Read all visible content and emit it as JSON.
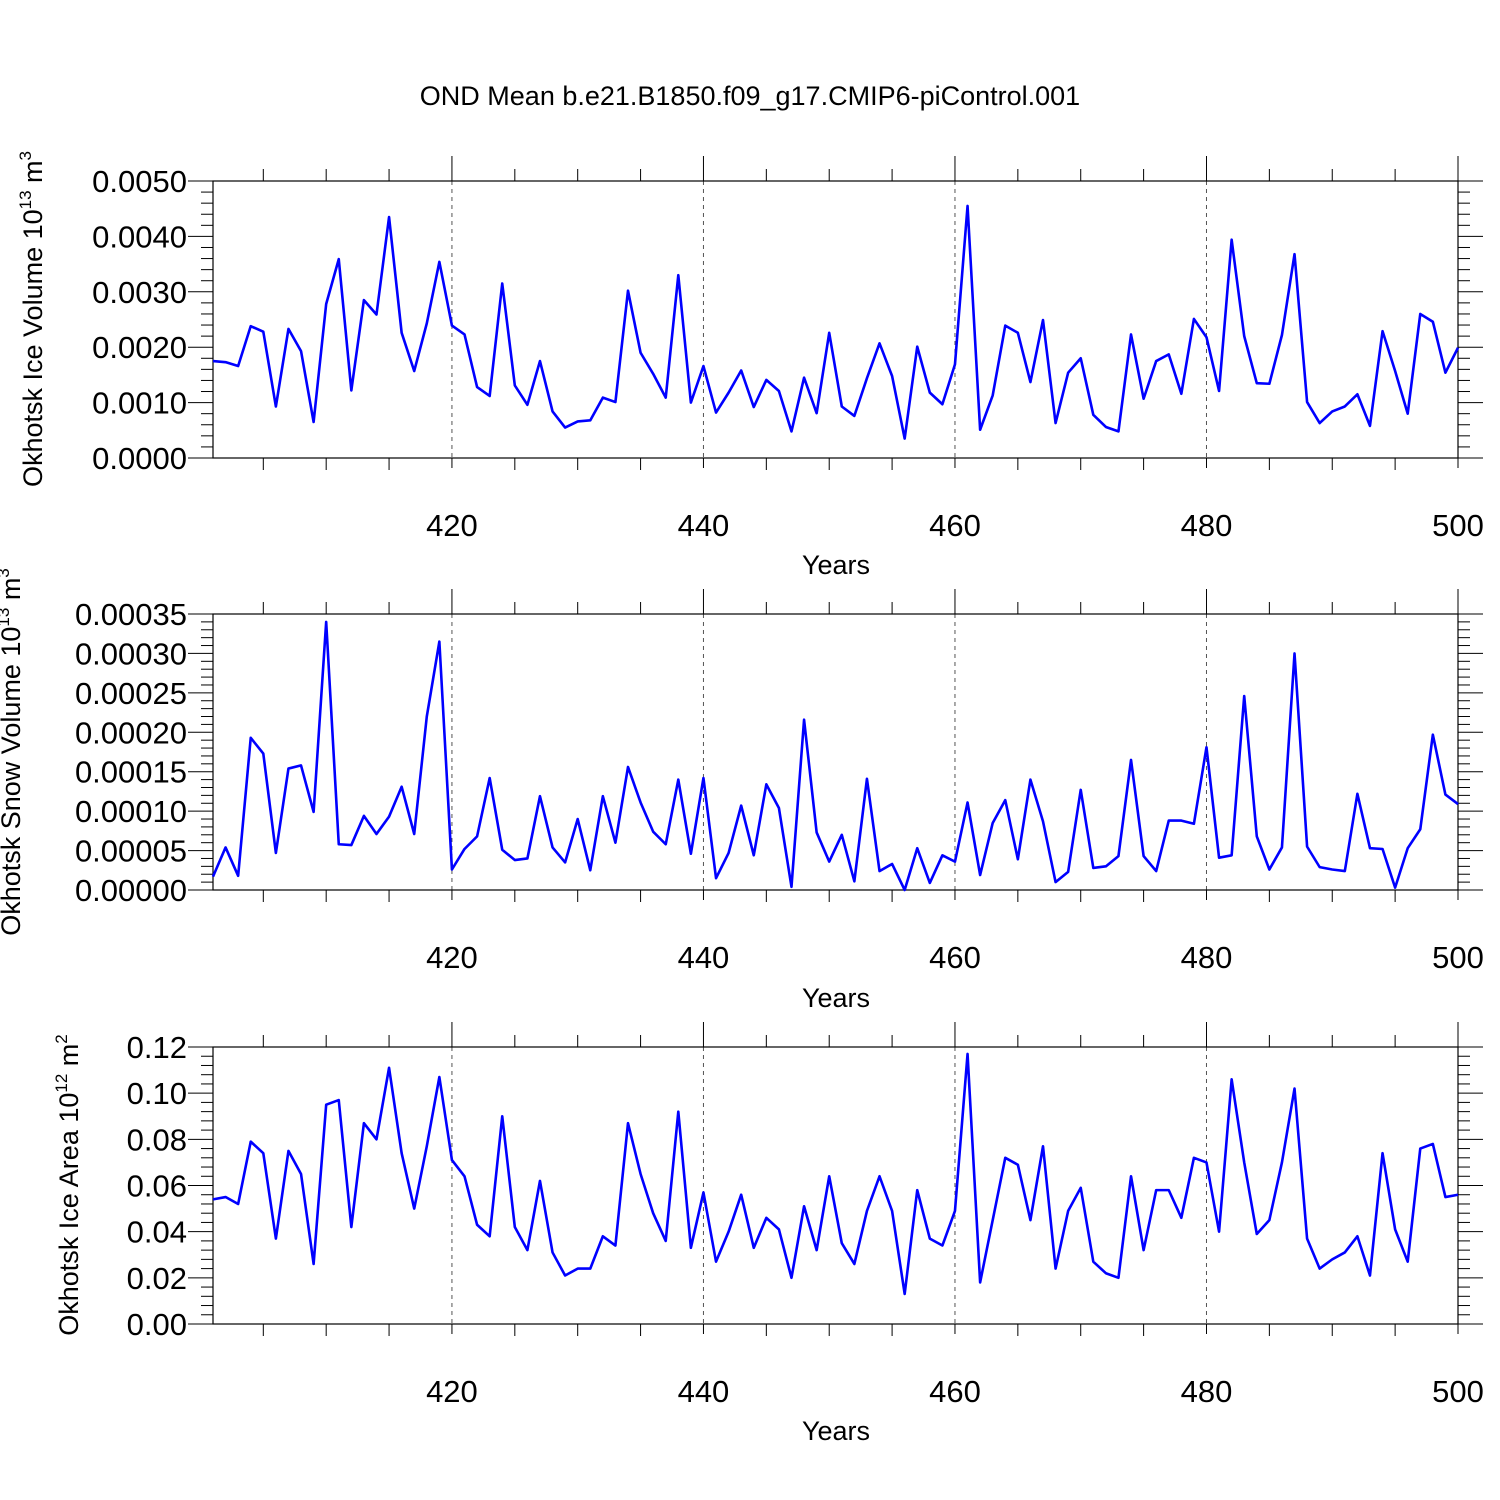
{
  "title": "OND Mean b.e21.B1850.f09_g17.CMIP6-piControl.001",
  "colors": {
    "line": "#0000ff",
    "axis": "#000000",
    "grid": "#555555"
  },
  "chart_data": [
    {
      "type": "line",
      "xlabel": "Years",
      "ylabel": {
        "main": "Okhotsk Ice Volume 10",
        "exp": "13",
        "unit": " m",
        "unit_exp": "3"
      },
      "xlim": [
        401,
        500
      ],
      "ylim": [
        0,
        0.005
      ],
      "xticks": [
        "420",
        "440",
        "460",
        "480",
        "500"
      ],
      "yticks": [
        "0.0000",
        "0.0010",
        "0.0020",
        "0.0030",
        "0.0040",
        "0.0050"
      ],
      "grid": "dashed vertical at major x ticks",
      "x_start": 401,
      "values": [
        0.00175,
        0.00173,
        0.00166,
        0.00238,
        0.00228,
        0.00093,
        0.00233,
        0.00193,
        0.00065,
        0.00278,
        0.00359,
        0.00122,
        0.00285,
        0.00259,
        0.00435,
        0.00226,
        0.00157,
        0.00243,
        0.00354,
        0.00239,
        0.00223,
        0.00128,
        0.00112,
        0.00315,
        0.00131,
        0.00096,
        0.00175,
        0.00084,
        0.00055,
        0.00066,
        0.00068,
        0.00109,
        0.00101,
        0.00302,
        0.0019,
        0.00152,
        0.00109,
        0.0033,
        0.001,
        0.00166,
        0.00082,
        0.00118,
        0.00158,
        0.00092,
        0.00141,
        0.00121,
        0.00048,
        0.00145,
        0.00081,
        0.00226,
        0.00093,
        0.00076,
        0.00144,
        0.00207,
        0.00148,
        0.00035,
        0.00201,
        0.00118,
        0.00097,
        0.00169,
        0.00455,
        0.00051,
        0.00113,
        0.00239,
        0.00226,
        0.00137,
        0.00249,
        0.00063,
        0.00154,
        0.0018,
        0.00078,
        0.00056,
        0.00048,
        0.00223,
        0.00107,
        0.00175,
        0.00187,
        0.00116,
        0.00251,
        0.00218,
        0.00121,
        0.00394,
        0.0022,
        0.00135,
        0.00134,
        0.00222,
        0.00368,
        0.00101,
        0.00063,
        0.00084,
        0.00093,
        0.00115,
        0.00058,
        0.00229,
        0.00157,
        0.0008,
        0.0026,
        0.00246,
        0.00154,
        0.00199
      ]
    },
    {
      "type": "line",
      "xlabel": "Years",
      "ylabel": {
        "main": "Okhotsk Snow Volume 10",
        "exp": "13",
        "unit": " m",
        "unit_exp": "3"
      },
      "xlim": [
        401,
        500
      ],
      "ylim": [
        0,
        0.00035
      ],
      "xticks": [
        "420",
        "440",
        "460",
        "480",
        "500"
      ],
      "yticks": [
        "0.00000",
        "0.00005",
        "0.00010",
        "0.00015",
        "0.00020",
        "0.00025",
        "0.00030",
        "0.00035"
      ],
      "grid": "dashed vertical at major x ticks",
      "x_start": 401,
      "values": [
        1.7e-05,
        5.4e-05,
        1.8e-05,
        0.000193,
        0.000173,
        4.7e-05,
        0.000154,
        0.000158,
        9.9e-05,
        0.00034,
        5.8e-05,
        5.7e-05,
        9.4e-05,
        7.1e-05,
        9.3e-05,
        0.000131,
        7.1e-05,
        0.00022,
        0.000315,
        2.6e-05,
        5.2e-05,
        6.8e-05,
        0.000142,
        5.1e-05,
        3.8e-05,
        4e-05,
        0.000119,
        5.4e-05,
        3.5e-05,
        9e-05,
        2.5e-05,
        0.000119,
        6e-05,
        0.000156,
        0.000111,
        7.4e-05,
        5.8e-05,
        0.00014,
        4.6e-05,
        0.000142,
        1.5e-05,
        4.7e-05,
        0.000107,
        4.4e-05,
        0.000134,
        0.000104,
        4e-06,
        0.000216,
        7.3e-05,
        3.6e-05,
        7e-05,
        1.1e-05,
        0.000141,
        2.4e-05,
        3.3e-05,
        0.0,
        5.3e-05,
        9e-06,
        4.4e-05,
        3.6e-05,
        0.000111,
        1.9e-05,
        8.5e-05,
        0.000114,
        3.9e-05,
        0.00014,
        8.7e-05,
        1e-05,
        2.3e-05,
        0.000127,
        2.8e-05,
        3e-05,
        4.3e-05,
        0.000165,
        4.3e-05,
        2.4e-05,
        8.8e-05,
        8.8e-05,
        8.4e-05,
        0.000181,
        4.1e-05,
        4.4e-05,
        0.000246,
        6.8e-05,
        2.6e-05,
        5.4e-05,
        0.0003,
        5.5e-05,
        2.9e-05,
        2.6e-05,
        2.4e-05,
        0.000122,
        5.3e-05,
        5.2e-05,
        3e-06,
        5.3e-05,
        7.7e-05,
        0.000197,
        0.000121,
        0.000109
      ]
    },
    {
      "type": "line",
      "xlabel": "Years",
      "ylabel": {
        "main": "Okhotsk Ice Area 10",
        "exp": "12",
        "unit": " m",
        "unit_exp": "2"
      },
      "xlim": [
        401,
        500
      ],
      "ylim": [
        0,
        0.12
      ],
      "xticks": [
        "420",
        "440",
        "460",
        "480",
        "500"
      ],
      "yticks": [
        "0.00",
        "0.02",
        "0.04",
        "0.06",
        "0.08",
        "0.10",
        "0.12"
      ],
      "grid": "dashed vertical at major x ticks",
      "x_start": 401,
      "values": [
        0.054,
        0.055,
        0.052,
        0.079,
        0.074,
        0.037,
        0.075,
        0.065,
        0.026,
        0.095,
        0.097,
        0.042,
        0.087,
        0.08,
        0.111,
        0.074,
        0.05,
        0.077,
        0.107,
        0.071,
        0.064,
        0.043,
        0.038,
        0.09,
        0.042,
        0.032,
        0.062,
        0.031,
        0.021,
        0.024,
        0.024,
        0.038,
        0.034,
        0.087,
        0.065,
        0.048,
        0.036,
        0.092,
        0.033,
        0.057,
        0.027,
        0.04,
        0.056,
        0.033,
        0.046,
        0.041,
        0.02,
        0.051,
        0.032,
        0.064,
        0.035,
        0.026,
        0.049,
        0.064,
        0.049,
        0.013,
        0.058,
        0.037,
        0.034,
        0.049,
        0.117,
        0.018,
        0.045,
        0.072,
        0.069,
        0.045,
        0.077,
        0.024,
        0.049,
        0.059,
        0.027,
        0.022,
        0.02,
        0.064,
        0.032,
        0.058,
        0.058,
        0.046,
        0.072,
        0.07,
        0.04,
        0.106,
        0.07,
        0.039,
        0.045,
        0.07,
        0.102,
        0.037,
        0.024,
        0.028,
        0.031,
        0.038,
        0.021,
        0.074,
        0.041,
        0.027,
        0.076,
        0.078,
        0.055,
        0.056
      ]
    }
  ]
}
